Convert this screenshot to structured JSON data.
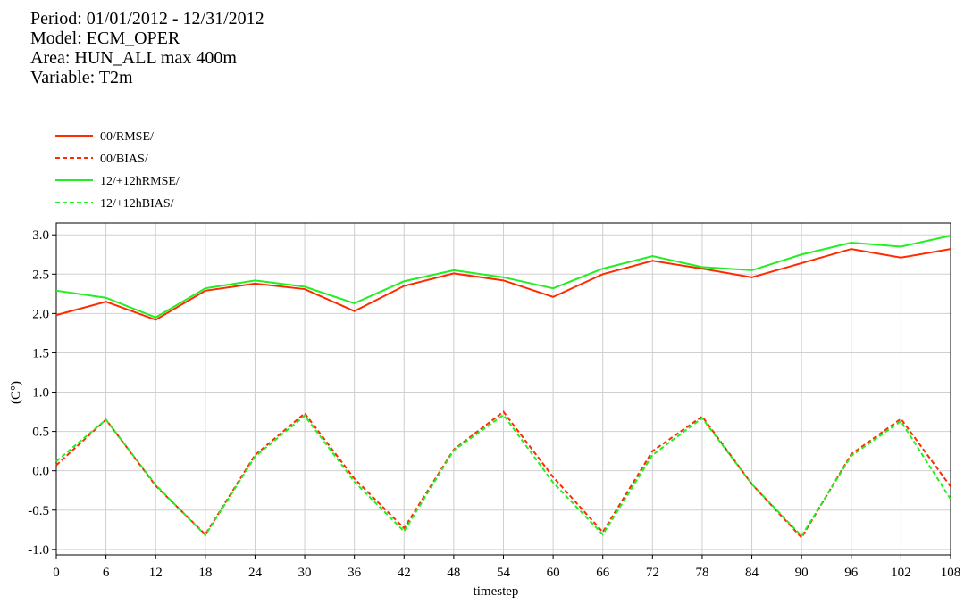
{
  "chart_data": {
    "type": "line",
    "title_lines": [
      "Period: 01/01/2012 - 12/31/2012",
      "Model: ECM_OPER",
      "Area: HUN_ALL max 400m",
      "Variable: T2m"
    ],
    "xlabel": "timestep",
    "ylabel": "(C°)",
    "x": [
      0,
      6,
      12,
      18,
      24,
      30,
      36,
      42,
      48,
      54,
      60,
      66,
      72,
      78,
      84,
      90,
      96,
      102,
      108
    ],
    "series": [
      {
        "name": "00/RMSE/",
        "color": "#ff2a00",
        "dashed": false,
        "values": [
          1.98,
          2.15,
          1.92,
          2.29,
          2.38,
          2.31,
          2.03,
          2.35,
          2.51,
          2.42,
          2.21,
          2.5,
          2.67,
          2.57,
          2.46,
          2.64,
          2.82,
          2.71,
          2.82
        ]
      },
      {
        "name": "00/BIAS/",
        "color": "#ff2a00",
        "dashed": true,
        "values": [
          0.07,
          0.65,
          -0.19,
          -0.81,
          0.2,
          0.73,
          -0.1,
          -0.73,
          0.27,
          0.75,
          -0.08,
          -0.78,
          0.25,
          0.69,
          -0.17,
          -0.85,
          0.21,
          0.66,
          -0.2
        ]
      },
      {
        "name": "12/+12hRMSE/",
        "color": "#22ee22",
        "dashed": false,
        "values": [
          2.29,
          2.2,
          1.95,
          2.32,
          2.42,
          2.34,
          2.13,
          2.41,
          2.55,
          2.46,
          2.32,
          2.57,
          2.73,
          2.59,
          2.55,
          2.75,
          2.9,
          2.85,
          2.99
        ]
      },
      {
        "name": "12/+12hBIAS/",
        "color": "#22ee22",
        "dashed": true,
        "values": [
          0.12,
          0.65,
          -0.18,
          -0.82,
          0.18,
          0.7,
          -0.14,
          -0.77,
          0.26,
          0.71,
          -0.15,
          -0.81,
          0.2,
          0.67,
          -0.17,
          -0.83,
          0.19,
          0.63,
          -0.36
        ]
      }
    ],
    "xlim": [
      0,
      108
    ],
    "ylim": [
      -1.07,
      3.15
    ],
    "xticks": [
      0,
      6,
      12,
      18,
      24,
      30,
      36,
      42,
      48,
      54,
      60,
      66,
      72,
      78,
      84,
      90,
      96,
      102,
      108
    ],
    "yticks": [
      {
        "value": -1,
        "label": "-1.0"
      },
      {
        "value": -0.5,
        "label": "-0.5"
      },
      {
        "value": 0,
        "label": "0.0"
      },
      {
        "value": 0.5,
        "label": "0.5"
      },
      {
        "value": 1,
        "label": "1.0"
      },
      {
        "value": 1.5,
        "label": "1.5"
      },
      {
        "value": 2,
        "label": "2.0"
      },
      {
        "value": 2.5,
        "label": "2.5"
      },
      {
        "value": 3,
        "label": "3.0"
      }
    ],
    "grid": true
  }
}
